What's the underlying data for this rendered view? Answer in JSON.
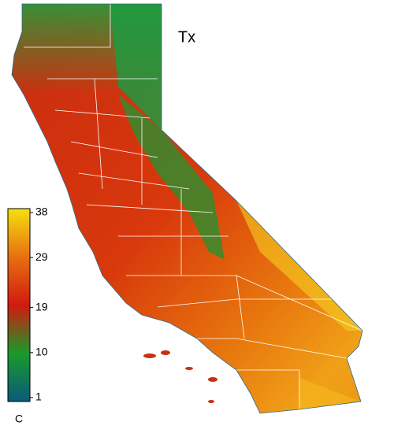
{
  "title": "Tx",
  "colorbar": {
    "ticks": [
      38,
      29,
      19,
      10,
      1
    ],
    "unit": "C",
    "colors": [
      "#0a5a7a",
      "#1a9a2a",
      "#d01a10",
      "#e87010",
      "#f5e010"
    ]
  }
}
